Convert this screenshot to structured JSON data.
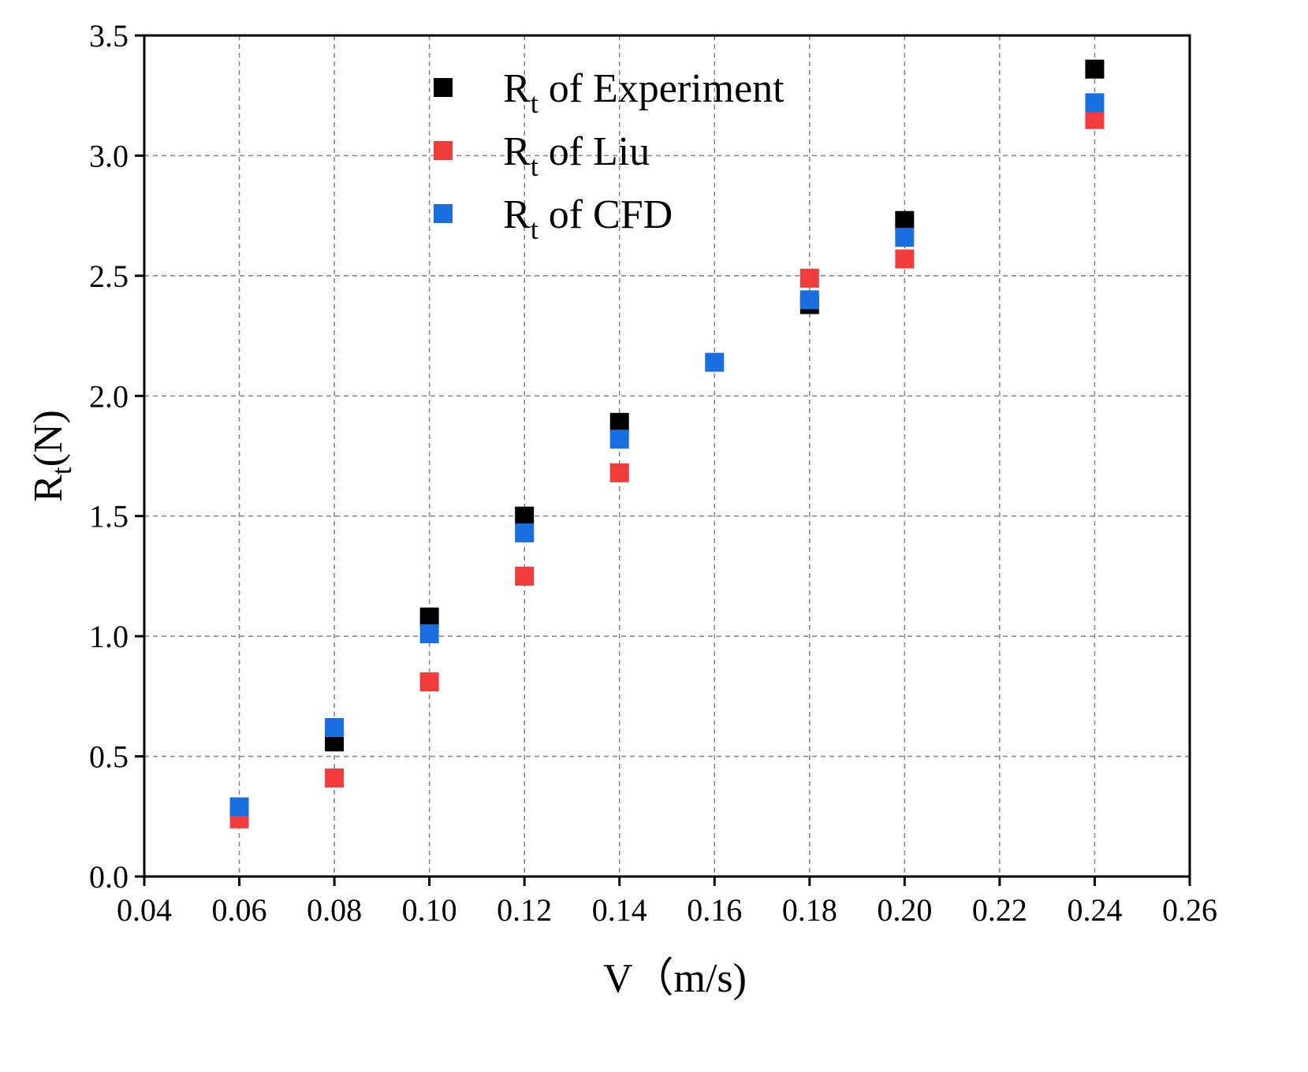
{
  "chart_data": {
    "type": "scatter",
    "title": "",
    "xlabel": "V（m/s)",
    "ylabel": {
      "main": "R",
      "sub": "t",
      "unit": "(N)"
    },
    "xlim": [
      0.04,
      0.26
    ],
    "ylim": [
      0.0,
      3.5
    ],
    "xticks": [
      "0.04",
      "0.06",
      "0.08",
      "0.10",
      "0.12",
      "0.14",
      "0.16",
      "0.18",
      "0.20",
      "0.22",
      "0.24",
      "0.26"
    ],
    "yticks": [
      "0.0",
      "0.5",
      "1.0",
      "1.5",
      "2.0",
      "2.5",
      "3.0",
      "3.5"
    ],
    "grid": true,
    "legend_position": "top-center",
    "series": [
      {
        "name": "Rt of Experiment",
        "label": {
          "main": "R",
          "sub": "t",
          "rest": " of Experiment"
        },
        "color": "#000000",
        "x": [
          0.08,
          0.1,
          0.12,
          0.14,
          0.18,
          0.2,
          0.24
        ],
        "y": [
          0.56,
          1.08,
          1.5,
          1.89,
          2.38,
          2.73,
          3.36
        ]
      },
      {
        "name": "Rt of Liu",
        "label": {
          "main": "R",
          "sub": "t",
          "rest": " of Liu"
        },
        "color": "#f23c3c",
        "x": [
          0.06,
          0.08,
          0.1,
          0.12,
          0.14,
          0.18,
          0.2,
          0.24
        ],
        "y": [
          0.24,
          0.41,
          0.81,
          1.25,
          1.68,
          2.49,
          2.57,
          3.15
        ]
      },
      {
        "name": "Rt of CFD",
        "label": {
          "main": "R",
          "sub": "t",
          "rest": " of CFD"
        },
        "color": "#1a6fe0",
        "x": [
          0.06,
          0.08,
          0.1,
          0.12,
          0.14,
          0.16,
          0.18,
          0.2,
          0.24
        ],
        "y": [
          0.29,
          0.62,
          1.01,
          1.43,
          1.82,
          2.14,
          2.4,
          2.66,
          3.22
        ]
      }
    ]
  }
}
